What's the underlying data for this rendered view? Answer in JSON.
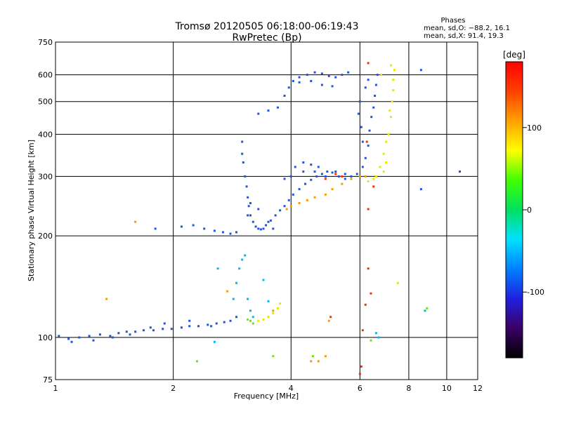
{
  "chart_data": {
    "type": "scatter",
    "title": "Tromsø 20120505 06:18:00-06:19:43",
    "subtitle": "RwPretec (Bp)",
    "phases": {
      "title": "Phases",
      "line_o": "mean, sd,O: −88.2, 16.1",
      "line_x": "mean, sd,X:  91.4, 19.3"
    },
    "xlabel": "Frequency [MHz]",
    "ylabel": "Stationary phase Virtual Height [km]",
    "xscale": "log",
    "yscale": "log",
    "xlim": [
      1,
      12
    ],
    "ylim": [
      75,
      750
    ],
    "xticks": [
      1,
      2,
      4,
      6,
      8,
      10,
      12
    ],
    "yticks": [
      75,
      100,
      200,
      300,
      400,
      500,
      600,
      750
    ],
    "xgrid": [
      2,
      4,
      6,
      8,
      10
    ],
    "ygrid": [
      100,
      200,
      300,
      400,
      500,
      600
    ],
    "grid": true,
    "colorbar": {
      "label": "[deg]",
      "min": -180,
      "max": 180,
      "ticks": [
        100,
        0,
        -100
      ],
      "colormap": "rainbow",
      "stops": [
        "#000000",
        "#3a0064",
        "#2020e0",
        "#0080ff",
        "#00e0ff",
        "#00e060",
        "#40ff00",
        "#ffff00",
        "#ffa000",
        "#ff4000",
        "#ff0000"
      ]
    },
    "series": [
      {
        "color": "#2255dd",
        "points": [
          [
            1.02,
            101
          ],
          [
            1.08,
            99
          ],
          [
            1.15,
            100
          ],
          [
            1.22,
            101
          ],
          [
            1.3,
            102
          ],
          [
            1.38,
            101
          ],
          [
            1.45,
            103
          ],
          [
            1.52,
            104
          ],
          [
            1.6,
            104
          ],
          [
            1.68,
            105
          ],
          [
            1.78,
            105
          ],
          [
            1.88,
            106
          ],
          [
            1.98,
            106
          ],
          [
            2.1,
            107
          ],
          [
            2.2,
            108
          ],
          [
            2.32,
            108
          ],
          [
            2.45,
            109
          ],
          [
            2.58,
            110
          ],
          [
            2.7,
            111
          ],
          [
            2.8,
            112
          ],
          [
            2.9,
            115
          ],
          [
            1.1,
            97
          ],
          [
            1.25,
            98
          ],
          [
            1.4,
            100
          ],
          [
            1.55,
            102
          ],
          [
            1.75,
            107
          ],
          [
            1.9,
            110
          ],
          [
            2.2,
            112
          ],
          [
            2.5,
            108
          ],
          [
            1.8,
            210
          ],
          [
            2.1,
            213
          ],
          [
            2.25,
            215
          ],
          [
            2.4,
            210
          ],
          [
            2.55,
            207
          ],
          [
            2.68,
            205
          ],
          [
            2.8,
            203
          ],
          [
            2.9,
            205
          ],
          [
            3.0,
            380
          ],
          [
            3.0,
            350
          ],
          [
            3.02,
            330
          ],
          [
            3.05,
            300
          ],
          [
            3.08,
            280
          ],
          [
            3.1,
            260
          ],
          [
            3.12,
            245
          ],
          [
            3.15,
            230
          ],
          [
            3.2,
            220
          ],
          [
            3.25,
            213
          ],
          [
            3.3,
            210
          ],
          [
            3.35,
            209
          ],
          [
            3.4,
            210
          ],
          [
            3.45,
            215
          ],
          [
            3.55,
            222
          ],
          [
            3.65,
            230
          ],
          [
            3.75,
            238
          ],
          [
            3.85,
            245
          ],
          [
            3.95,
            255
          ],
          [
            4.05,
            265
          ],
          [
            4.2,
            275
          ],
          [
            4.35,
            285
          ],
          [
            4.5,
            293
          ],
          [
            4.65,
            300
          ],
          [
            4.8,
            305
          ],
          [
            4.95,
            310
          ],
          [
            5.1,
            308
          ],
          [
            5.3,
            300
          ],
          [
            5.5,
            295
          ],
          [
            5.7,
            300
          ],
          [
            5.9,
            305
          ],
          [
            6.1,
            320
          ],
          [
            6.2,
            340
          ],
          [
            6.3,
            370
          ],
          [
            6.35,
            410
          ],
          [
            6.42,
            450
          ],
          [
            6.5,
            480
          ],
          [
            6.55,
            520
          ],
          [
            6.6,
            560
          ],
          [
            6.65,
            600
          ],
          [
            4.1,
            320
          ],
          [
            4.3,
            330
          ],
          [
            4.5,
            325
          ],
          [
            4.7,
            320
          ],
          [
            3.85,
            295
          ],
          [
            4.0,
            300
          ],
          [
            4.3,
            310
          ],
          [
            4.6,
            310
          ],
          [
            4.9,
            300
          ],
          [
            5.2,
            310
          ],
          [
            5.5,
            305
          ],
          [
            3.3,
            460
          ],
          [
            3.5,
            470
          ],
          [
            3.7,
            480
          ],
          [
            3.85,
            520
          ],
          [
            3.95,
            550
          ],
          [
            4.05,
            575
          ],
          [
            4.2,
            590
          ],
          [
            4.4,
            600
          ],
          [
            4.6,
            610
          ],
          [
            4.8,
            605
          ],
          [
            5.0,
            595
          ],
          [
            5.2,
            590
          ],
          [
            5.4,
            600
          ],
          [
            5.6,
            610
          ],
          [
            4.2,
            570
          ],
          [
            4.5,
            575
          ],
          [
            4.8,
            560
          ],
          [
            5.1,
            555
          ],
          [
            3.1,
            230
          ],
          [
            3.15,
            250
          ],
          [
            3.3,
            240
          ],
          [
            3.5,
            220
          ],
          [
            3.6,
            210
          ],
          [
            6.2,
            550
          ],
          [
            6.3,
            580
          ],
          [
            6.0,
            500
          ],
          [
            5.95,
            460
          ],
          [
            6.05,
            420
          ],
          [
            6.1,
            380
          ],
          [
            8.6,
            620
          ],
          [
            8.6,
            275
          ],
          [
            10.8,
            310
          ]
        ]
      },
      {
        "color": "#00b8f0",
        "points": [
          [
            2.55,
            97
          ],
          [
            2.85,
            130
          ],
          [
            2.9,
            145
          ],
          [
            2.95,
            160
          ],
          [
            3.0,
            170
          ],
          [
            3.05,
            175
          ],
          [
            3.1,
            130
          ],
          [
            3.15,
            120
          ],
          [
            3.2,
            115
          ],
          [
            3.4,
            148
          ],
          [
            3.5,
            128
          ],
          [
            6.6,
            103
          ],
          [
            6.7,
            100
          ],
          [
            8.8,
            120
          ],
          [
            2.6,
            160
          ]
        ]
      },
      {
        "color": "#70e020",
        "points": [
          [
            3.1,
            113
          ],
          [
            3.15,
            112
          ],
          [
            3.2,
            110
          ],
          [
            2.3,
            85
          ],
          [
            4.55,
            88
          ],
          [
            8.9,
            122
          ],
          [
            6.4,
            98
          ],
          [
            3.6,
            88
          ]
        ]
      },
      {
        "color": "#e8e800",
        "points": [
          [
            6.6,
            300
          ],
          [
            6.75,
            320
          ],
          [
            6.9,
            350
          ],
          [
            7.0,
            380
          ],
          [
            7.1,
            400
          ],
          [
            7.2,
            450
          ],
          [
            7.25,
            500
          ],
          [
            7.3,
            540
          ],
          [
            7.3,
            580
          ],
          [
            7.35,
            620
          ],
          [
            7.0,
            330
          ],
          [
            6.9,
            310
          ],
          [
            7.15,
            470
          ],
          [
            6.8,
            600
          ],
          [
            7.2,
            640
          ],
          [
            6.5,
            295
          ],
          [
            6.3,
            290
          ],
          [
            3.3,
            112
          ],
          [
            3.4,
            113
          ],
          [
            3.5,
            115
          ],
          [
            3.6,
            118
          ],
          [
            3.7,
            122
          ],
          [
            3.75,
            126
          ],
          [
            7.5,
            145
          ]
        ]
      },
      {
        "color": "#f0a000",
        "points": [
          [
            3.9,
            240
          ],
          [
            4.0,
            245
          ],
          [
            4.2,
            250
          ],
          [
            4.4,
            255
          ],
          [
            4.6,
            260
          ],
          [
            4.9,
            265
          ],
          [
            5.1,
            275
          ],
          [
            5.4,
            285
          ],
          [
            5.7,
            295
          ],
          [
            6.0,
            300
          ],
          [
            6.2,
            300
          ],
          [
            4.5,
            85
          ],
          [
            4.7,
            85
          ],
          [
            4.9,
            88
          ],
          [
            3.6,
            120
          ],
          [
            1.35,
            130
          ],
          [
            2.75,
            137
          ],
          [
            1.6,
            220
          ],
          [
            5.0,
            112
          ]
        ]
      },
      {
        "color": "#ff3000",
        "points": [
          [
            4.9,
            295
          ],
          [
            5.2,
            305
          ],
          [
            5.4,
            300
          ],
          [
            6.3,
            240
          ],
          [
            6.5,
            280
          ],
          [
            6.0,
            78
          ],
          [
            6.05,
            82
          ],
          [
            6.1,
            105
          ],
          [
            6.2,
            125
          ],
          [
            6.4,
            135
          ],
          [
            5.05,
            115
          ],
          [
            6.3,
            650
          ],
          [
            6.25,
            380
          ],
          [
            6.3,
            160
          ]
        ]
      }
    ]
  }
}
